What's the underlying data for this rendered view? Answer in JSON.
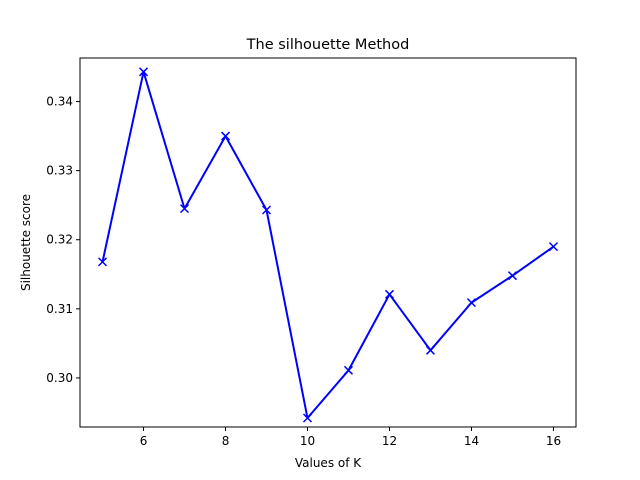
{
  "chart_data": {
    "type": "line",
    "title": "The silhouette Method",
    "xlabel": "Values of K",
    "ylabel": "Silhouette score",
    "xlim": [
      4.45,
      16.55
    ],
    "ylim": [
      0.2929,
      0.3463
    ],
    "xticks": [
      6,
      8,
      10,
      12,
      14,
      16
    ],
    "yticks": [
      0.3,
      0.31,
      0.32,
      0.33,
      0.34
    ],
    "ytick_labels": [
      "0.30",
      "0.31",
      "0.32",
      "0.33",
      "0.34"
    ],
    "grid": false,
    "marker": "x",
    "line_color": "#0000ff",
    "series": [
      {
        "x": [
          5,
          6,
          7,
          8,
          9,
          10,
          11,
          12,
          13,
          14,
          15,
          16
        ],
        "values": [
          0.3168,
          0.3443,
          0.3245,
          0.335,
          0.3243,
          0.2942,
          0.3011,
          0.3121,
          0.304,
          0.3109,
          0.3148,
          0.319
        ]
      }
    ]
  }
}
